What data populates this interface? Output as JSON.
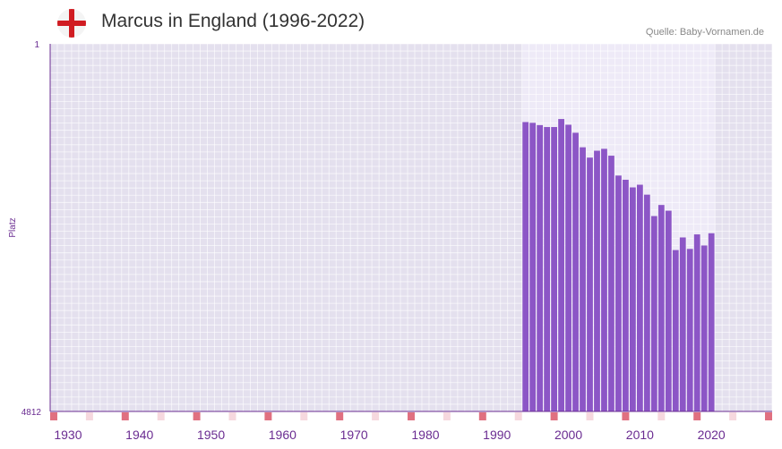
{
  "header": {
    "title": "Marcus in England (1996-2022)",
    "source": "Quelle: Baby-Vornamen.de",
    "flag_icon": "england-flag-icon"
  },
  "colors": {
    "bar": "#8c56c6",
    "axis": "#6a2c91",
    "plot_bg": "#e4e0ee",
    "highlight_bg": "#eeeaf7",
    "decade_marker": "#e07080",
    "minor_marker": "#f6d8de"
  },
  "chart_data": {
    "type": "bar",
    "title": "Marcus in England (1996-2022)",
    "xlabel": "",
    "ylabel": "Platz",
    "ylim": [
      1,
      4812
    ],
    "y_inverted": true,
    "y_ticks": [
      "1",
      "4812"
    ],
    "x_range": [
      1928,
      2029
    ],
    "x_ticks": [
      1930,
      1940,
      1950,
      1960,
      1970,
      1980,
      1990,
      2000,
      2010,
      2020
    ],
    "highlight_range": [
      1994,
      2021
    ],
    "series": [
      {
        "name": "Marcus",
        "x": [
          1994,
          1995,
          1996,
          1997,
          1998,
          1999,
          2000,
          2001,
          2002,
          2003,
          2004,
          2005,
          2006,
          2007,
          2008,
          2009,
          2010,
          2011,
          2012,
          2013,
          2014,
          2015,
          2016,
          2017,
          2018,
          2019,
          2020
        ],
        "values": [
          1025,
          1035,
          1065,
          1090,
          1090,
          985,
          1060,
          1165,
          1355,
          1490,
          1400,
          1375,
          1465,
          1725,
          1780,
          1880,
          1845,
          1975,
          2255,
          2110,
          2185,
          2700,
          2535,
          2685,
          2495,
          2640,
          2480
        ]
      }
    ]
  }
}
